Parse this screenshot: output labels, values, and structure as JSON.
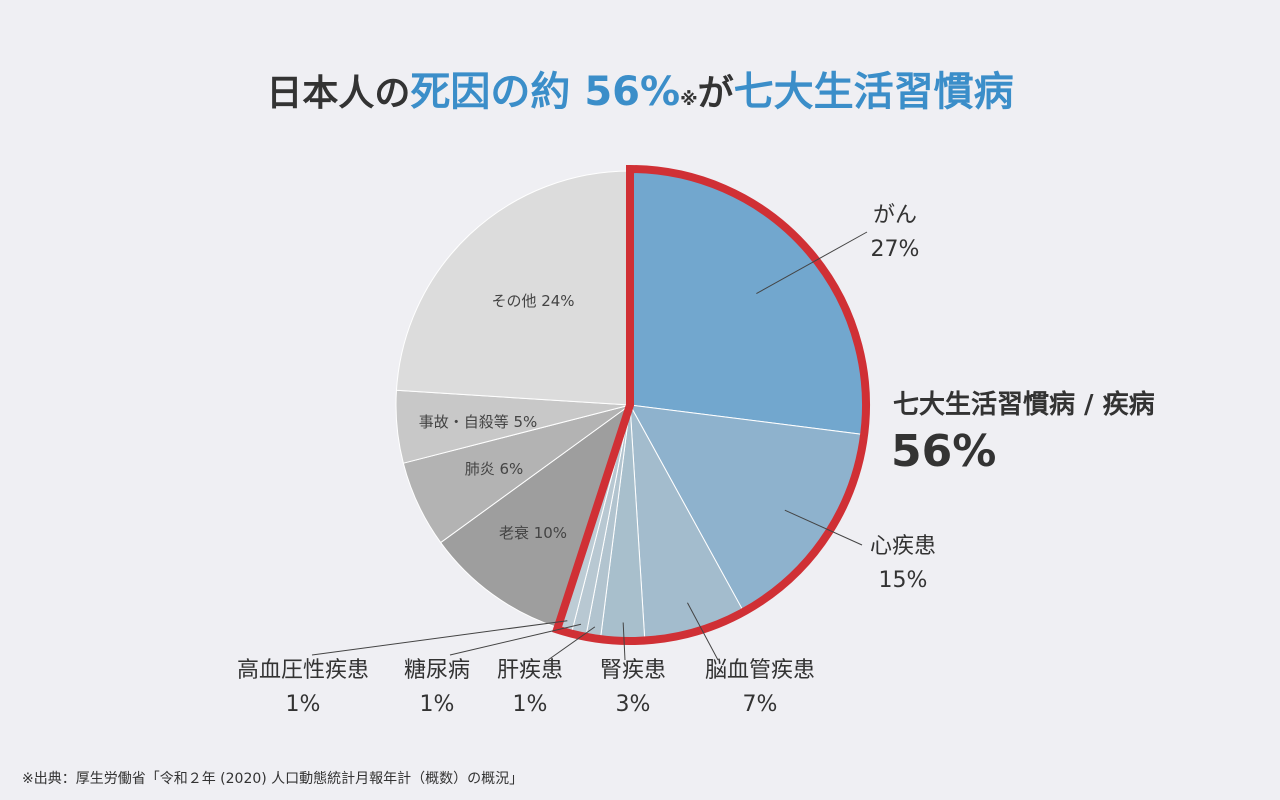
{
  "title": {
    "part1": "日本人の",
    "part2": "死因の約 56%",
    "note": "※",
    "part3": "が",
    "part4": "七大生活習慣病"
  },
  "chart_data": {
    "type": "pie",
    "start": "12 o'clock",
    "direction": "clockwise",
    "slices": [
      {
        "name": "がん",
        "value": 27,
        "label": "27%",
        "color": "#72a7ce",
        "group": "lifestyle"
      },
      {
        "name": "心疾患",
        "value": 15,
        "label": "15%",
        "color": "#8eb2cd",
        "group": "lifestyle"
      },
      {
        "name": "脳血管疾患",
        "value": 7,
        "label": "7%",
        "color": "#a3bccd",
        "group": "lifestyle"
      },
      {
        "name": "腎疾患",
        "value": 3,
        "label": "3%",
        "color": "#a8bfcc",
        "group": "lifestyle"
      },
      {
        "name": "肝疾患",
        "value": 1,
        "label": "1%",
        "color": "#b2c4cf",
        "group": "lifestyle"
      },
      {
        "name": "糖尿病",
        "value": 1,
        "label": "1%",
        "color": "#b8c8d2",
        "group": "lifestyle"
      },
      {
        "name": "高血圧性疾患",
        "value": 1,
        "label": "1%",
        "color": "#bdccd5",
        "group": "lifestyle"
      },
      {
        "name": "老衰",
        "value": 10,
        "label": "老衰 10%",
        "color": "#9e9e9e",
        "group": "other"
      },
      {
        "name": "肺炎",
        "value": 6,
        "label": "肺炎 6%",
        "color": "#b3b3b3",
        "group": "other"
      },
      {
        "name": "事故・自殺等",
        "value": 5,
        "label": "事故・自殺等 5%",
        "color": "#c8c8c8",
        "group": "other"
      },
      {
        "name": "その他",
        "value": 24,
        "label": "その他 24%",
        "color": "#dcdcdc",
        "group": "other"
      }
    ],
    "highlight": {
      "label": "七大生活習慣病 / 疾病",
      "value_label": "56%",
      "value": 56,
      "color": "#d03035"
    }
  },
  "source_note": "※出典：厚生労働省「令和２年 (2020) 人口動態統計月報年計（概数）の概況」"
}
